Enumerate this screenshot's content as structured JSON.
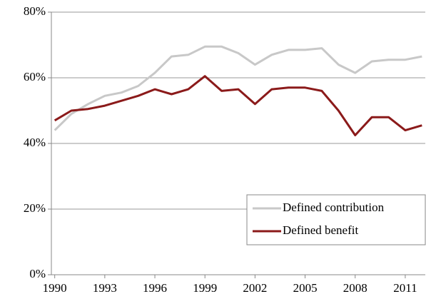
{
  "chart_data": {
    "type": "line",
    "x": [
      1990,
      1991,
      1992,
      1993,
      1994,
      1995,
      1996,
      1997,
      1998,
      1999,
      2000,
      2001,
      2002,
      2003,
      2004,
      2005,
      2006,
      2007,
      2008,
      2009,
      2010,
      2011,
      2012
    ],
    "series": [
      {
        "name": "Defined contribution",
        "color": "#c8c8c8",
        "values": [
          44,
          49,
          52,
          54.5,
          55.5,
          57.5,
          61.5,
          66.5,
          67,
          69.5,
          69.5,
          67.5,
          64,
          67,
          68.5,
          68.5,
          69,
          64,
          61.5,
          65,
          65.5,
          65.5,
          66.5
        ]
      },
      {
        "name": "Defined benefit",
        "color": "#8b1a1a",
        "values": [
          47,
          50,
          50.5,
          51.5,
          53,
          54.5,
          56.5,
          55,
          56.5,
          60.5,
          56,
          56.5,
          52,
          56.5,
          57,
          57,
          56,
          50,
          42.5,
          48,
          48,
          44,
          45.5
        ]
      }
    ],
    "xlim": [
      1989.8,
      2012.2
    ],
    "xticks": [
      1990,
      1993,
      1996,
      1999,
      2002,
      2005,
      2008,
      2011
    ],
    "ylim": [
      0,
      80
    ],
    "yticks": [
      {
        "value": 0,
        "label": "0%"
      },
      {
        "value": 20,
        "label": "20%"
      },
      {
        "value": 40,
        "label": "40%"
      },
      {
        "value": 60,
        "label": "60%"
      },
      {
        "value": 80,
        "label": "80%"
      }
    ],
    "grid": true,
    "legend": "lower-right"
  }
}
